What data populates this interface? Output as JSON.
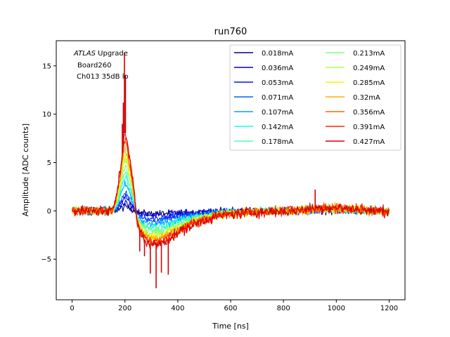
{
  "chart_data": {
    "type": "line",
    "title": "run760",
    "xlabel": "Time [ns]",
    "ylabel": "Amplitude [ADC counts]",
    "xlim": [
      -60,
      1260
    ],
    "ylim": [
      -9.2,
      17.6
    ],
    "xticks": [
      0,
      200,
      400,
      600,
      800,
      1000,
      1200
    ],
    "yticks": [
      -5,
      0,
      5,
      10,
      15
    ],
    "legend_position": "upper-right",
    "legend_columns": 2,
    "annotation": {
      "line1_italic": "ATLAS",
      "line1_rest": " Upgrade",
      "line2": "Board260",
      "line3": "Ch013 35dB lo"
    },
    "series": [
      {
        "name": "0.018mA",
        "color": "#00007f",
        "peak": 0.4,
        "undershoot": 0.3,
        "noise": 0.28
      },
      {
        "name": "0.036mA",
        "color": "#0000d1",
        "peak": 0.9,
        "undershoot": 0.5,
        "noise": 0.28
      },
      {
        "name": "0.053mA",
        "color": "#0010ff",
        "peak": 1.4,
        "undershoot": 0.8,
        "noise": 0.28
      },
      {
        "name": "0.071mA",
        "color": "#0060ff",
        "peak": 1.9,
        "undershoot": 1.0,
        "noise": 0.3
      },
      {
        "name": "0.107mA",
        "color": "#00a4ff",
        "peak": 2.7,
        "undershoot": 1.4,
        "noise": 0.3
      },
      {
        "name": "0.142mA",
        "color": "#19ffde",
        "peak": 3.4,
        "undershoot": 1.7,
        "noise": 0.3
      },
      {
        "name": "0.178mA",
        "color": "#4dffaa",
        "peak": 4.0,
        "undershoot": 2.0,
        "noise": 0.3
      },
      {
        "name": "0.213mA",
        "color": "#7dff7a",
        "peak": 4.7,
        "undershoot": 2.2,
        "noise": 0.32
      },
      {
        "name": "0.249mA",
        "color": "#b3ff43",
        "peak": 5.3,
        "undershoot": 2.5,
        "noise": 0.32
      },
      {
        "name": "0.285mA",
        "color": "#f4f802",
        "peak": 5.9,
        "undershoot": 2.7,
        "noise": 0.33
      },
      {
        "name": "0.32mA",
        "color": "#ffb000",
        "peak": 6.4,
        "undershoot": 2.9,
        "noise": 0.35
      },
      {
        "name": "0.356mA",
        "color": "#ff6800",
        "peak": 7.0,
        "undershoot": 3.1,
        "noise": 0.37
      },
      {
        "name": "0.391mA",
        "color": "#ff2500",
        "peak": 7.5,
        "undershoot": 3.3,
        "noise": 0.4
      },
      {
        "name": "0.427mA",
        "color": "#d50000",
        "peak": 8.0,
        "undershoot": 3.5,
        "noise": 0.45
      }
    ],
    "spikes": [
      {
        "x": 198,
        "y": 16.3
      },
      {
        "x": 202,
        "y": 14.0
      },
      {
        "x": 194,
        "y": 11.2
      },
      {
        "x": 190,
        "y": 9.0
      },
      {
        "x": 296,
        "y": -6.5
      },
      {
        "x": 318,
        "y": -8.0
      },
      {
        "x": 338,
        "y": -6.4
      },
      {
        "x": 364,
        "y": -6.6
      },
      {
        "x": 274,
        "y": -4.7
      },
      {
        "x": 256,
        "y": -4.2
      },
      {
        "x": 920,
        "y": 2.2
      }
    ]
  }
}
